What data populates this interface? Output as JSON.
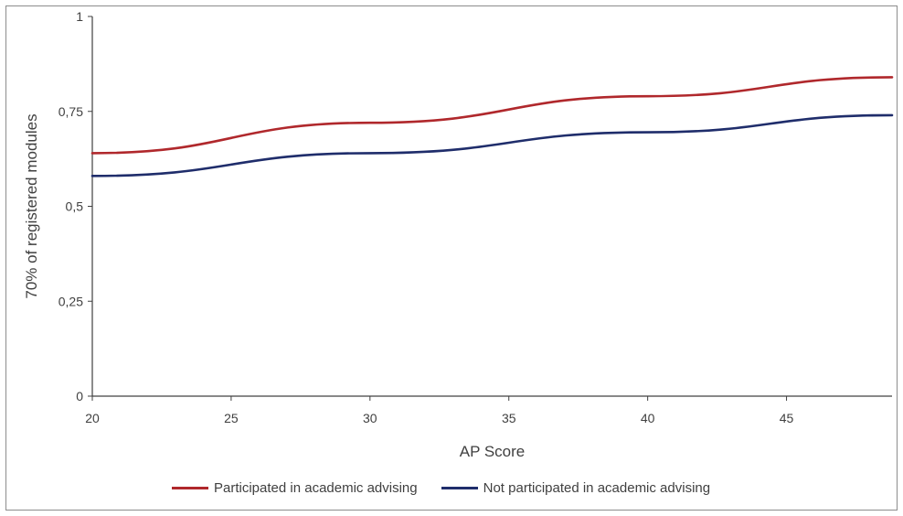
{
  "chart_data": {
    "type": "line",
    "xlabel": "AP Score",
    "ylabel": "70% of registered modules",
    "xlim": [
      20,
      48.8
    ],
    "ylim": [
      0,
      1
    ],
    "x_ticks": [
      "20",
      "25",
      "30",
      "35",
      "40",
      "45"
    ],
    "x_tick_values": [
      20,
      25,
      30,
      35,
      40,
      45
    ],
    "y_ticks": [
      "0",
      "0,25",
      "0,5",
      "0,75",
      "1"
    ],
    "y_tick_values": [
      0,
      0.25,
      0.5,
      0.75,
      1
    ],
    "grid": false,
    "legend_position": "bottom",
    "series": [
      {
        "name": "Participated in academic advising",
        "color": "#b0282c",
        "points": [
          [
            20,
            0.64
          ],
          [
            30,
            0.72
          ],
          [
            40,
            0.79
          ],
          [
            48.8,
            0.84
          ]
        ]
      },
      {
        "name": "Not participated in academic advising",
        "color": "#1f2d6b",
        "points": [
          [
            20,
            0.58
          ],
          [
            30,
            0.64
          ],
          [
            40,
            0.695
          ],
          [
            48.8,
            0.74
          ]
        ]
      }
    ]
  }
}
